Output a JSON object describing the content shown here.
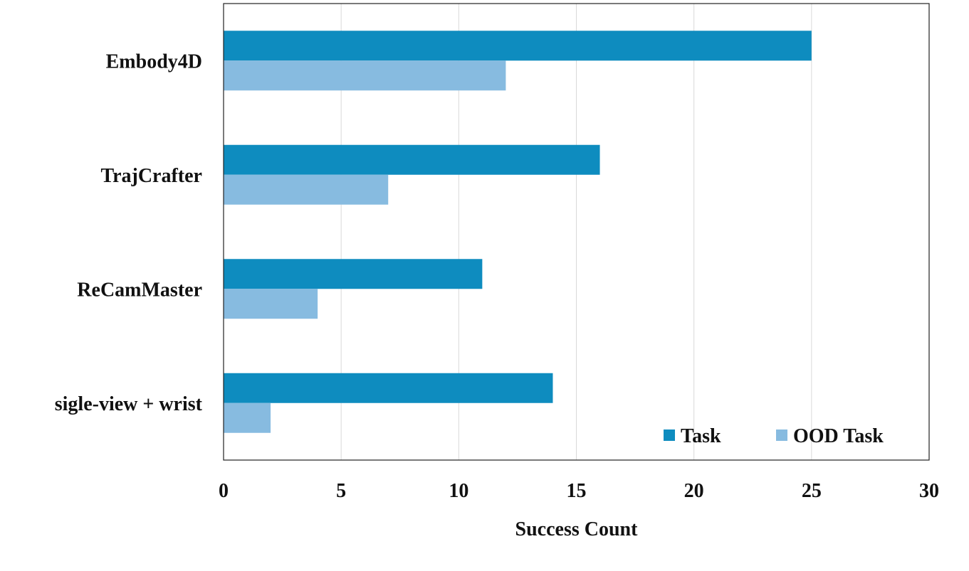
{
  "chart_data": {
    "type": "bar",
    "orientation": "horizontal",
    "categories": [
      "Embody4D",
      "TrajCrafter",
      "ReCamMaster",
      "sigle-view + wrist"
    ],
    "series": [
      {
        "name": "Task",
        "values": [
          25,
          16,
          11,
          14
        ],
        "color": "#0e8cbf"
      },
      {
        "name": "OOD Task",
        "values": [
          12,
          7,
          4,
          2
        ],
        "color": "#87bbe0"
      }
    ],
    "title": "",
    "xlabel": "Success Count",
    "ylabel": "",
    "xlim": [
      0,
      30
    ],
    "xticks": [
      "0",
      "5",
      "10",
      "15",
      "20",
      "25",
      "30"
    ],
    "grid": "vertical",
    "legend_position": "bottom-right"
  }
}
